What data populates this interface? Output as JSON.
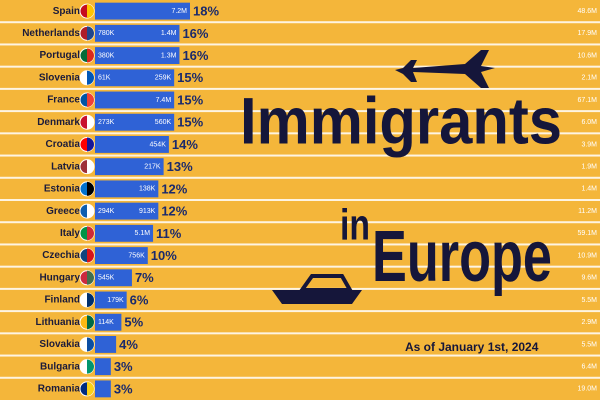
{
  "chart_data": {
    "type": "bar",
    "title": "Immigrants",
    "title_joiner": "in",
    "title_place": "Europe",
    "subtitle": "As of January 1st, 2024",
    "categories": [
      "Spain",
      "Netherlands",
      "Portugal",
      "Slovenia",
      "France",
      "Denmark",
      "Croatia",
      "Latvia",
      "Estonia",
      "Greece",
      "Italy",
      "Czechia",
      "Hungary",
      "Finland",
      "Lithuania",
      "Slovakia",
      "Bulgaria",
      "Romania"
    ],
    "values": [
      18,
      16,
      16,
      15,
      15,
      15,
      14,
      13,
      12,
      12,
      11,
      10,
      7,
      6,
      5,
      4,
      3,
      3
    ],
    "value_labels": [
      "18%",
      "16%",
      "16%",
      "15%",
      "15%",
      "15%",
      "14%",
      "13%",
      "12%",
      "12%",
      "11%",
      "10%",
      "7%",
      "6%",
      "5%",
      "4%",
      "3%",
      "3%"
    ],
    "inner_left_labels": [
      null,
      "780K",
      "380K",
      "61K",
      null,
      "273K",
      null,
      null,
      null,
      "294K",
      null,
      null,
      "545K",
      null,
      "114K",
      null,
      null,
      null
    ],
    "inner_right_labels": [
      "7.2M",
      "1.4M",
      "1.3M",
      "259K",
      "7.4M",
      "560K",
      "454K",
      "217K",
      "138K",
      "913K",
      "5.1M",
      "756K",
      null,
      "179K",
      null,
      null,
      null,
      null
    ],
    "population_labels": [
      "48.6M",
      "17.9M",
      "10.6M",
      "2.1M",
      "67.1M",
      "6.0M",
      "3.9M",
      "1.9M",
      "1.4M",
      "11.2M",
      "59.1M",
      "10.9M",
      "9.6M",
      "5.5M",
      "2.9M",
      "5.5M",
      "6.4M",
      "19.0M"
    ],
    "xlim": [
      0,
      18
    ],
    "color": "#2f62d6"
  }
}
